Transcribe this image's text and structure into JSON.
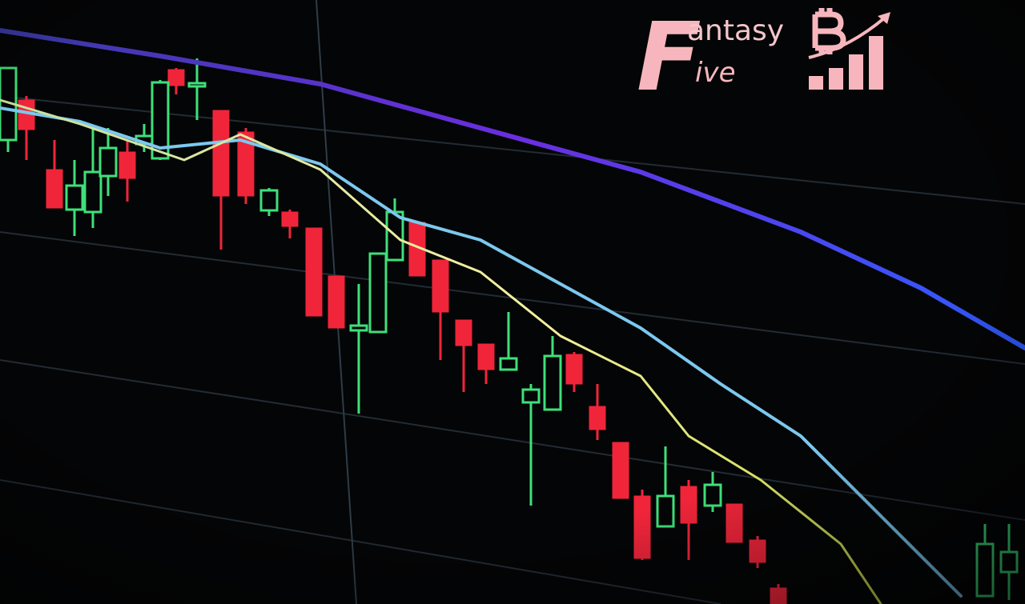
{
  "logo": {
    "initial": "F",
    "first_word_rest": "antasy",
    "second_word_rest": "ive"
  }
}
